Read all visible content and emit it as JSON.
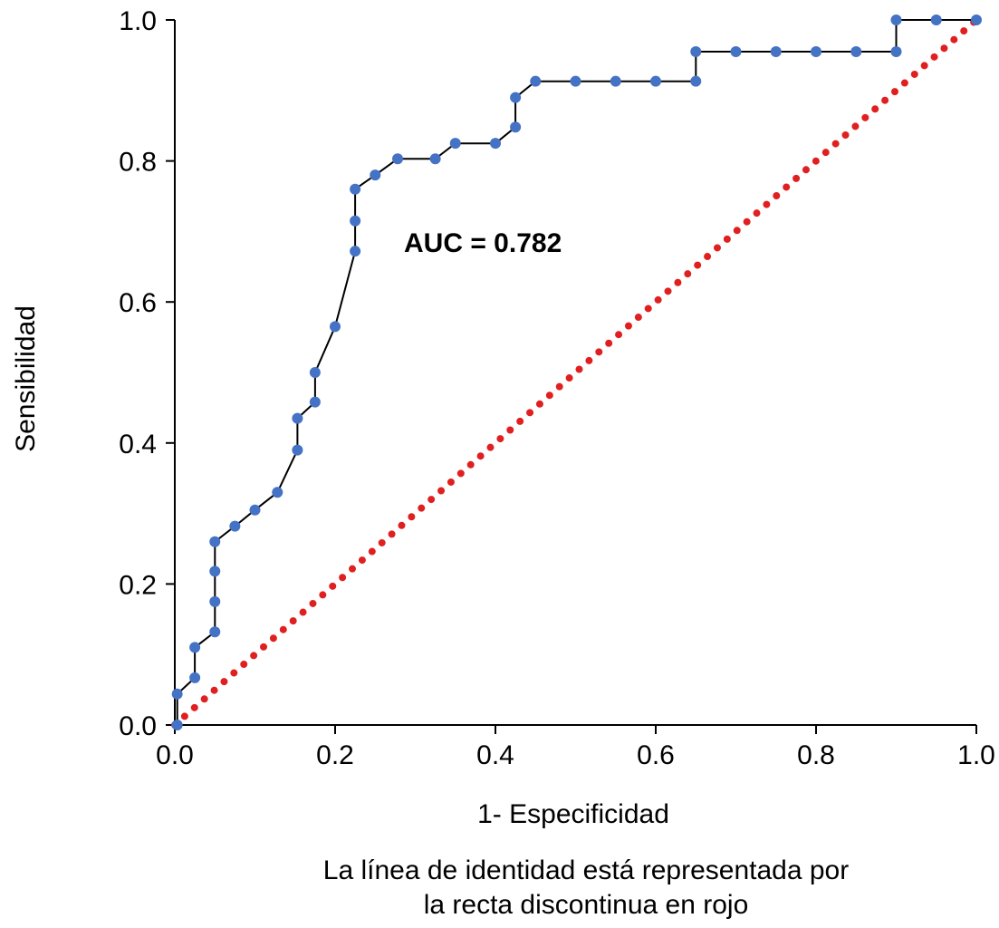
{
  "chart_data": {
    "type": "line",
    "title": "",
    "xlabel": "1- Especificidad",
    "ylabel": "Sensibilidad",
    "xlim": [
      0,
      1
    ],
    "ylim": [
      0,
      1
    ],
    "x_ticks": [
      "0.0",
      "0.2",
      "0.4",
      "0.6",
      "0.8",
      "1.0"
    ],
    "y_ticks": [
      "0.0",
      "0.2",
      "0.4",
      "0.6",
      "0.8",
      "1.0"
    ],
    "annotation": "AUC = 0.782",
    "caption_lines": [
      "La línea de identidad está representada por",
      "la recta discontinua en rojo"
    ],
    "grid": false,
    "series": [
      {
        "name": "ROC",
        "color": "#4472c4",
        "line_color": "#000000",
        "points": [
          [
            0.003,
            0.0
          ],
          [
            0.003,
            0.044
          ],
          [
            0.025,
            0.067
          ],
          [
            0.025,
            0.11
          ],
          [
            0.05,
            0.132
          ],
          [
            0.05,
            0.175
          ],
          [
            0.05,
            0.218
          ],
          [
            0.05,
            0.26
          ],
          [
            0.075,
            0.282
          ],
          [
            0.1,
            0.305
          ],
          [
            0.128,
            0.33
          ],
          [
            0.153,
            0.39
          ],
          [
            0.153,
            0.435
          ],
          [
            0.175,
            0.458
          ],
          [
            0.175,
            0.5
          ],
          [
            0.2,
            0.565
          ],
          [
            0.225,
            0.672
          ],
          [
            0.225,
            0.715
          ],
          [
            0.225,
            0.76
          ],
          [
            0.25,
            0.78
          ],
          [
            0.278,
            0.803
          ],
          [
            0.325,
            0.803
          ],
          [
            0.35,
            0.825
          ],
          [
            0.4,
            0.825
          ],
          [
            0.425,
            0.848
          ],
          [
            0.425,
            0.89
          ],
          [
            0.45,
            0.913
          ],
          [
            0.5,
            0.913
          ],
          [
            0.55,
            0.913
          ],
          [
            0.6,
            0.913
          ],
          [
            0.65,
            0.913
          ],
          [
            0.65,
            0.955
          ],
          [
            0.7,
            0.955
          ],
          [
            0.75,
            0.955
          ],
          [
            0.8,
            0.955
          ],
          [
            0.85,
            0.955
          ],
          [
            0.9,
            0.955
          ],
          [
            0.9,
            1.0
          ],
          [
            0.95,
            1.0
          ],
          [
            1.0,
            1.0
          ]
        ]
      },
      {
        "name": "Identidad",
        "color": "#e02020",
        "style": "dotted",
        "points": [
          [
            0.0,
            0.0
          ],
          [
            1.0,
            1.0
          ]
        ]
      }
    ]
  }
}
